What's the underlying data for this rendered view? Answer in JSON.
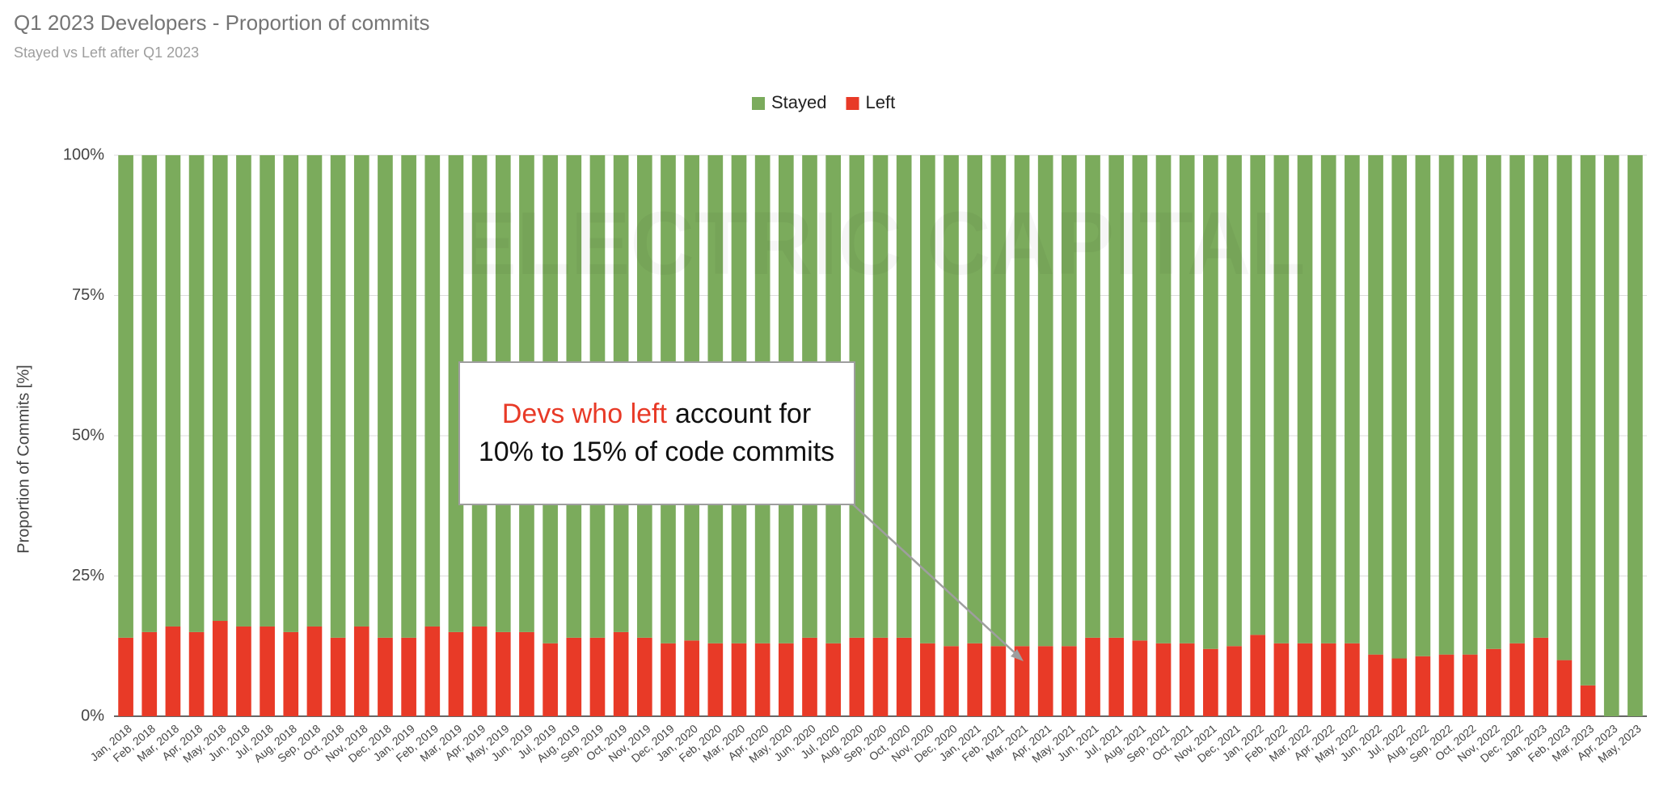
{
  "chart_data": {
    "type": "stacked_bar",
    "title": "Q1 2023 Developers - Proportion of commits",
    "subtitle": "Stayed vs Left after Q1 2023",
    "y_label": "Proportion of Commits [%]",
    "watermark": "ELECTRIC CAPITAL",
    "annotation": [
      "Devs who left",
      "account for",
      "10% to 15% of code commits"
    ],
    "categories": [
      "Jan, 2018",
      "Feb, 2018",
      "Mar, 2018",
      "Apr, 2018",
      "May, 2018",
      "Jun, 2018",
      "Jul, 2018",
      "Aug, 2018",
      "Sep, 2018",
      "Oct, 2018",
      "Nov, 2018",
      "Dec, 2018",
      "Jan, 2019",
      "Feb, 2019",
      "Mar, 2019",
      "Apr, 2019",
      "May, 2019",
      "Jun, 2019",
      "Jul, 2019",
      "Aug, 2019",
      "Sep, 2019",
      "Oct, 2019",
      "Nov, 2019",
      "Dec, 2019",
      "Jan, 2020",
      "Feb, 2020",
      "Mar, 2020",
      "Apr, 2020",
      "May, 2020",
      "Jun, 2020",
      "Jul, 2020",
      "Aug, 2020",
      "Sep, 2020",
      "Oct, 2020",
      "Nov, 2020",
      "Dec, 2020",
      "Jan, 2021",
      "Feb, 2021",
      "Mar, 2021",
      "Apr, 2021",
      "May, 2021",
      "Jun, 2021",
      "Jul, 2021",
      "Aug, 2021",
      "Sep, 2021",
      "Oct, 2021",
      "Nov, 2021",
      "Dec, 2021",
      "Jan, 2022",
      "Feb, 2022",
      "Mar, 2022",
      "Apr, 2022",
      "May, 2022",
      "Jun, 2022",
      "Jul, 2022",
      "Aug, 2022",
      "Sep, 2022",
      "Oct, 2022",
      "Nov, 2022",
      "Dec, 2022",
      "Jan, 2023",
      "Feb, 2023",
      "Mar, 2023",
      "Apr, 2023",
      "May, 2023"
    ],
    "series": [
      {
        "name": "Stayed",
        "color": "#7bab5c",
        "values": [
          86,
          85,
          84,
          85,
          83,
          84,
          84,
          85,
          84,
          86,
          84,
          86,
          86,
          84,
          85,
          84,
          85,
          85,
          87,
          86,
          86,
          85,
          86,
          87,
          86.5,
          87,
          87,
          87,
          87,
          86,
          87,
          86,
          86,
          86,
          87,
          87.5,
          87,
          87.5,
          87.5,
          87.5,
          87.5,
          86,
          86,
          86.5,
          87,
          87,
          88,
          87.5,
          85.5,
          87,
          87,
          87,
          87,
          89,
          89.7,
          89.3,
          89,
          89,
          88,
          87,
          86,
          90,
          94.5,
          100,
          100
        ]
      },
      {
        "name": "Left",
        "color": "#e83a27",
        "values": [
          14,
          15,
          16,
          15,
          17,
          16,
          16,
          15,
          16,
          14,
          16,
          14,
          14,
          16,
          15,
          16,
          15,
          15,
          13,
          14,
          14,
          15,
          14,
          13,
          13.5,
          13,
          13,
          13,
          13,
          14,
          13,
          14,
          14,
          14,
          13,
          12.5,
          13,
          12.5,
          12.5,
          12.5,
          12.5,
          14,
          14,
          13.5,
          13,
          13,
          12,
          12.5,
          14.5,
          13,
          13,
          13,
          13,
          11,
          10.3,
          10.7,
          11,
          11,
          12,
          13,
          14,
          10,
          5.5,
          0,
          0
        ]
      }
    ],
    "ylim": [
      0,
      100
    ],
    "yticks": [
      {
        "value": 0,
        "label": "0%"
      },
      {
        "value": 25,
        "label": "25%"
      },
      {
        "value": 50,
        "label": "50%"
      },
      {
        "value": 75,
        "label": "75%"
      },
      {
        "value": 100,
        "label": "100%"
      }
    ],
    "grid": true,
    "legend": "top"
  }
}
